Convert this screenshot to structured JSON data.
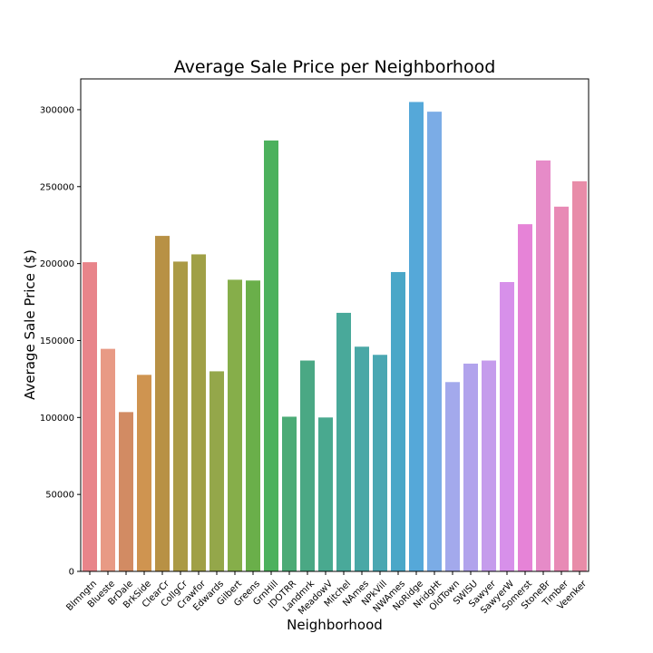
{
  "chart_data": {
    "type": "bar",
    "title": "Average Sale Price per Neighborhood",
    "xlabel": "Neighborhood",
    "ylabel": "Average Sale Price ($)",
    "ylim": [
      0,
      320000
    ],
    "yticks": [
      0,
      50000,
      100000,
      150000,
      200000,
      250000,
      300000
    ],
    "grid": false,
    "legend": "none",
    "categories": [
      "Blmngtn",
      "Blueste",
      "BrDale",
      "BrkSide",
      "ClearCr",
      "CollgCr",
      "Crawfor",
      "Edwards",
      "Gilbert",
      "Greens",
      "GrnHill",
      "IDOTRR",
      "Landmrk",
      "MeadowV",
      "Mitchel",
      "NAmes",
      "NPkVill",
      "NWAmes",
      "NoRidge",
      "NridgHt",
      "OldTown",
      "SWISU",
      "Sawyer",
      "SawyerW",
      "Somerst",
      "StoneBr",
      "Timber",
      "Veenker"
    ],
    "values": [
      200900,
      144600,
      103500,
      127700,
      218000,
      201300,
      206000,
      130000,
      189500,
      189000,
      280000,
      100500,
      137000,
      100000,
      168000,
      146000,
      140700,
      194500,
      305000,
      298700,
      123000,
      135000,
      137000,
      188000,
      225600,
      267000,
      237000,
      253500
    ],
    "colors": [
      "#e8848a",
      "#e89a85",
      "#d28b63",
      "#cf9450",
      "#b89145",
      "#ab9a45",
      "#a0a046",
      "#94a74a",
      "#86ae4a",
      "#6aaf4a",
      "#4cb15d",
      "#4cab76",
      "#4aa884",
      "#49a98f",
      "#49a99a",
      "#4aa8a6",
      "#4aa7b2",
      "#4aa7c8",
      "#55a8d9",
      "#7bace6",
      "#a3a9ec",
      "#b1a3ec",
      "#c59cec",
      "#d790ea",
      "#e683d7",
      "#e68bc8",
      "#e88ab5",
      "#e88ca8"
    ]
  }
}
